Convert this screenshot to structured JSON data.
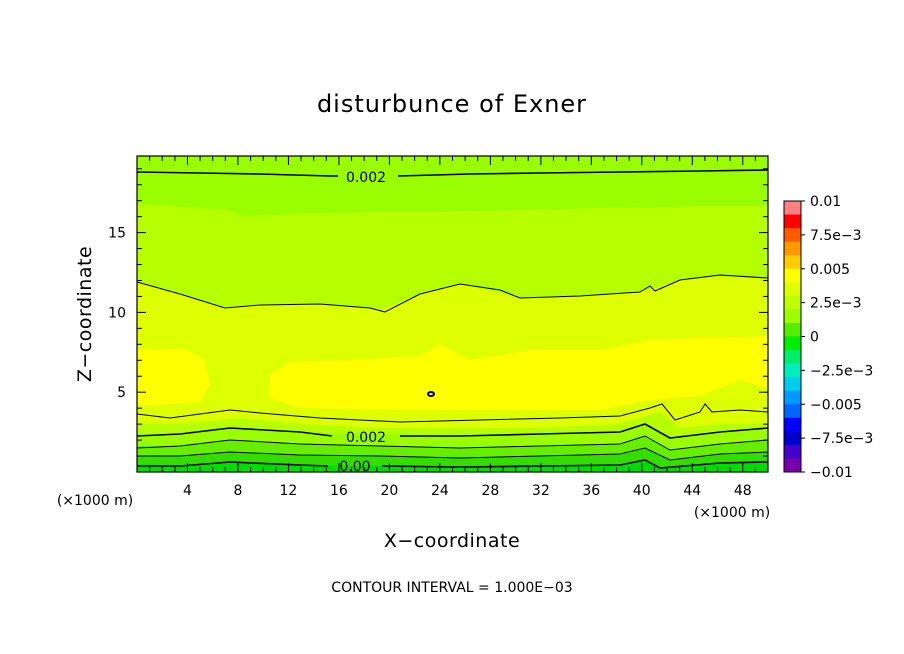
{
  "chart_data": {
    "type": "contour",
    "title": "disturbunce of Exner",
    "xlabel": "X−coordinate",
    "ylabel": "Z−coordinate",
    "x_unit_label": "(×1000 m)",
    "y_unit_label": "(×1000 m)",
    "xlim": [
      0,
      50
    ],
    "ylim": [
      0,
      19.8
    ],
    "x_ticks": [
      4,
      8,
      12,
      16,
      20,
      24,
      28,
      32,
      36,
      40,
      44,
      48
    ],
    "x_tick_labels": [
      "4",
      "8",
      "12",
      "16",
      "20",
      "24",
      "28",
      "32",
      "36",
      "40",
      "44",
      "48"
    ],
    "y_ticks": [
      5,
      10,
      15
    ],
    "y_tick_labels": [
      "5",
      "10",
      "15"
    ],
    "contour_interval_text": "CONTOUR INTERVAL = 1.000E−03",
    "contour_labels": [
      {
        "text": "0.002",
        "x": 18.5,
        "y": 18.9
      },
      {
        "text": "0.002",
        "x": 18.5,
        "y": 2.3
      },
      {
        "text": "0.00",
        "x": 17.5,
        "y": 0.4
      }
    ],
    "colorbar": {
      "labels": [
        "0.01",
        "7.5e−3",
        "0.005",
        "2.5e−3",
        "0",
        "−2.5e−3",
        "−0.005",
        "−7.5e−3",
        "−0.01"
      ],
      "values": [
        0.01,
        0.0075,
        0.005,
        0.0025,
        0,
        -0.0025,
        -0.005,
        -0.0075,
        -0.01
      ]
    },
    "colors": {
      "levels_top_to_bottom": [
        "#ff8080",
        "#ff0000",
        "#ff5a00",
        "#ff9900",
        "#ffcc00",
        "#ffff00",
        "#ddff00",
        "#bbff00",
        "#99ff00",
        "#55ee00",
        "#00ee00",
        "#00ee66",
        "#00eebb",
        "#00ccee",
        "#0099ff",
        "#0066ff",
        "#0000ff",
        "#0000cc",
        "#4400cc",
        "#7700aa"
      ]
    }
  }
}
